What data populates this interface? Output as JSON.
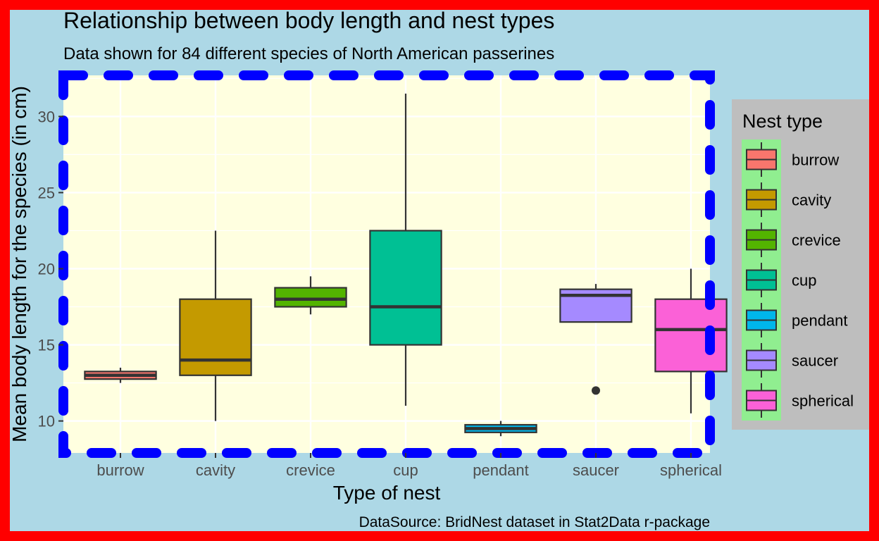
{
  "colors": {
    "border": "#ff0000",
    "plot_background": "#add8e6",
    "panel_background": "#ffffe0",
    "panel_border": "#0000ff",
    "legend_background": "#bebebe",
    "legend_key_background": "#90ee90",
    "outline": "#333333"
  },
  "chart_data": {
    "type": "box",
    "title": "Relationship between body length and nest types",
    "subtitle": "Data shown for 84 different species of North American passerines",
    "caption": "DataSource: BridNest dataset in Stat2Data r-package",
    "xlabel": "Type of nest",
    "ylabel": "Mean body length for the species (in cm)",
    "ylim": [
      7.9,
      32.7
    ],
    "yticks": [
      10,
      15,
      20,
      25,
      30
    ],
    "grid": true,
    "legend": {
      "title": "Nest type",
      "position": "right"
    },
    "categories": [
      "burrow",
      "cavity",
      "crevice",
      "cup",
      "pendant",
      "saucer",
      "spherical"
    ],
    "series": [
      {
        "name": "burrow",
        "color": "#F8766D",
        "whisker_low": 12.5,
        "q1": 12.75,
        "median": 13.0,
        "q3": 13.25,
        "whisker_high": 13.5,
        "outliers": []
      },
      {
        "name": "cavity",
        "color": "#C49A00",
        "whisker_low": 10.0,
        "q1": 13.0,
        "median": 14.0,
        "q3": 18.0,
        "whisker_high": 22.5,
        "outliers": []
      },
      {
        "name": "crevice",
        "color": "#53B400",
        "whisker_low": 17.0,
        "q1": 17.5,
        "median": 18.0,
        "q3": 18.75,
        "whisker_high": 19.5,
        "outliers": []
      },
      {
        "name": "cup",
        "color": "#00C094",
        "whisker_low": 11.0,
        "q1": 15.0,
        "median": 17.5,
        "q3": 22.5,
        "whisker_high": 31.5,
        "outliers": []
      },
      {
        "name": "pendant",
        "color": "#00B6EB",
        "whisker_low": 9.0,
        "q1": 9.25,
        "median": 9.5,
        "q3": 9.75,
        "whisker_high": 10.0,
        "outliers": []
      },
      {
        "name": "saucer",
        "color": "#A58AFF",
        "whisker_low": 16.5,
        "q1": 16.5,
        "median": 18.25,
        "q3": 18.65,
        "whisker_high": 19.0,
        "outliers": [
          12.0
        ]
      },
      {
        "name": "spherical",
        "color": "#FB61D7",
        "whisker_low": 10.5,
        "q1": 13.25,
        "median": 16.0,
        "q3": 18.0,
        "whisker_high": 20.0,
        "outliers": []
      }
    ]
  }
}
